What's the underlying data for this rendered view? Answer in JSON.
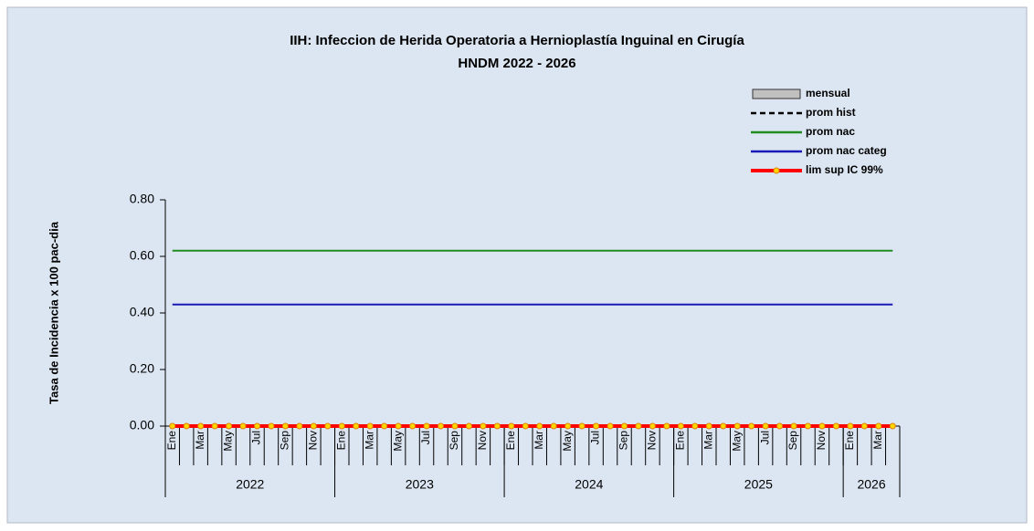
{
  "chart_data": {
    "type": "combo",
    "title": "IIH: Infeccion de Herida Operatoria a Hernioplastía Inguinal en Cirugía",
    "subtitle": "HNDM 2022 - 2026",
    "y_label": "Tasa de Incidencia x 100 pac-dia",
    "categories": [
      "Ene",
      null,
      "Mar",
      null,
      "May",
      null,
      "Jul",
      null,
      "Sep",
      null,
      "Nov",
      null,
      "Ene",
      null,
      "Mar",
      null,
      "May",
      null,
      "Jul",
      null,
      "Sep",
      null,
      "Nov",
      null,
      "Ene",
      null,
      "Mar",
      null,
      "May",
      null,
      "Jul",
      null,
      "Sep",
      null,
      "Nov",
      null,
      "Ene",
      null,
      "Mar",
      null,
      "May",
      null,
      "Jul",
      null,
      "Sep",
      null,
      "Nov",
      null,
      "Ene",
      null,
      "Mar",
      null
    ],
    "groups": [
      {
        "label": "2022",
        "count": 12
      },
      {
        "label": "2023",
        "count": 12
      },
      {
        "label": "2024",
        "count": 12
      },
      {
        "label": "2025",
        "count": 12
      },
      {
        "label": "2026",
        "count": 4
      }
    ],
    "ylim": [
      0,
      0.8
    ],
    "yticks": [
      {
        "value": 0,
        "label": "0.00"
      },
      {
        "value": 0.2,
        "label": "0.20"
      },
      {
        "value": 0.4,
        "label": "0.40"
      },
      {
        "value": 0.6,
        "label": "0.60"
      },
      {
        "value": 0.8,
        "label": "0.80"
      }
    ],
    "series": [
      {
        "name": "mensual",
        "kind": "bar",
        "color": "#c0c0c0",
        "values": [
          0,
          0,
          0,
          0,
          0,
          0,
          0,
          0,
          0,
          0,
          0,
          0,
          0,
          0,
          0,
          0,
          0,
          0,
          0,
          0,
          0,
          0,
          0,
          0,
          0,
          0,
          0,
          0,
          0,
          0,
          0,
          0,
          0,
          0,
          0,
          0,
          0,
          0,
          0,
          0,
          0,
          0,
          0,
          0,
          0,
          0,
          0,
          0,
          0,
          0,
          0,
          0
        ]
      },
      {
        "name": "prom hist",
        "kind": "line",
        "color": "#000000",
        "dash": true,
        "values": [
          0,
          0,
          0,
          0,
          0,
          0,
          0,
          0,
          0,
          0,
          0,
          0,
          0,
          0,
          0,
          0,
          0,
          0,
          0,
          0,
          0,
          0,
          0,
          0,
          0,
          0,
          0,
          0,
          0,
          0,
          0,
          0,
          0,
          0,
          0,
          0,
          0,
          0,
          0,
          0,
          0,
          0,
          0,
          0,
          0,
          0,
          0,
          0,
          0,
          0,
          0,
          0
        ]
      },
      {
        "name": "prom nac",
        "kind": "line",
        "color": "#228b22",
        "values": [
          0.62,
          0.62,
          0.62,
          0.62,
          0.62,
          0.62,
          0.62,
          0.62,
          0.62,
          0.62,
          0.62,
          0.62,
          0.62,
          0.62,
          0.62,
          0.62,
          0.62,
          0.62,
          0.62,
          0.62,
          0.62,
          0.62,
          0.62,
          0.62,
          0.62,
          0.62,
          0.62,
          0.62,
          0.62,
          0.62,
          0.62,
          0.62,
          0.62,
          0.62,
          0.62,
          0.62,
          0.62,
          0.62,
          0.62,
          0.62,
          0.62,
          0.62,
          0.62,
          0.62,
          0.62,
          0.62,
          0.62,
          0.62,
          0.62,
          0.62,
          0.62,
          0.62
        ]
      },
      {
        "name": "prom nac categ",
        "kind": "line",
        "color": "#1a1ab8",
        "values": [
          0.43,
          0.43,
          0.43,
          0.43,
          0.43,
          0.43,
          0.43,
          0.43,
          0.43,
          0.43,
          0.43,
          0.43,
          0.43,
          0.43,
          0.43,
          0.43,
          0.43,
          0.43,
          0.43,
          0.43,
          0.43,
          0.43,
          0.43,
          0.43,
          0.43,
          0.43,
          0.43,
          0.43,
          0.43,
          0.43,
          0.43,
          0.43,
          0.43,
          0.43,
          0.43,
          0.43,
          0.43,
          0.43,
          0.43,
          0.43,
          0.43,
          0.43,
          0.43,
          0.43,
          0.43,
          0.43,
          0.43,
          0.43,
          0.43,
          0.43,
          0.43,
          0.43
        ]
      },
      {
        "name": "lim sup IC 99%",
        "kind": "line",
        "color": "#ff0000",
        "width": 4,
        "marker_color": "#ffd700",
        "values": [
          0,
          0,
          0,
          0,
          0,
          0,
          0,
          0,
          0,
          0,
          0,
          0,
          0,
          0,
          0,
          0,
          0,
          0,
          0,
          0,
          0,
          0,
          0,
          0,
          0,
          0,
          0,
          0,
          0,
          0,
          0,
          0,
          0,
          0,
          0,
          0,
          0,
          0,
          0,
          0,
          0,
          0,
          0,
          0,
          0,
          0,
          0,
          0,
          0,
          0,
          0,
          0
        ]
      }
    ]
  }
}
